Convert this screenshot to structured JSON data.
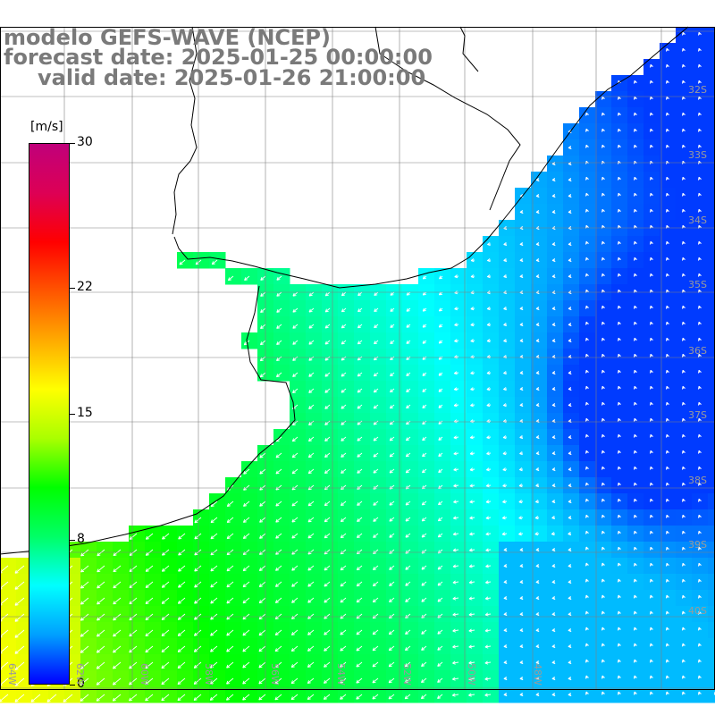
{
  "title": {
    "line1": "modelo GEFS-WAVE (NCEP)",
    "line2": "forecast date: 2025-01-25 00:00:00",
    "line3": "valid date: 2025-01-26 21:00:00"
  },
  "colorbar": {
    "unit": "[m/s]",
    "ticks": [
      {
        "label": "30",
        "value": 30
      },
      {
        "label": "22",
        "value": 22
      },
      {
        "label": "15",
        "value": 15
      },
      {
        "label": "8",
        "value": 8
      },
      {
        "label": "0",
        "value": 0
      }
    ],
    "range": [
      0,
      30
    ],
    "stops": [
      "#0000ff",
      "#00a0ff",
      "#00ffff",
      "#00ff66",
      "#00ff00",
      "#aaff00",
      "#ffff00",
      "#ffaa00",
      "#ff5500",
      "#ff0000",
      "#dd0055",
      "#c0007a"
    ]
  },
  "map": {
    "lat_labels": [
      "32S",
      "33S",
      "34S",
      "35S",
      "36S",
      "37S",
      "38S",
      "39S",
      "40S"
    ],
    "lon_labels": [
      "64W",
      "62W",
      "60W",
      "58W",
      "56W",
      "54W",
      "52W",
      "50W",
      "48W"
    ],
    "coast_color": "#000000",
    "grid_color": "#808080"
  }
}
